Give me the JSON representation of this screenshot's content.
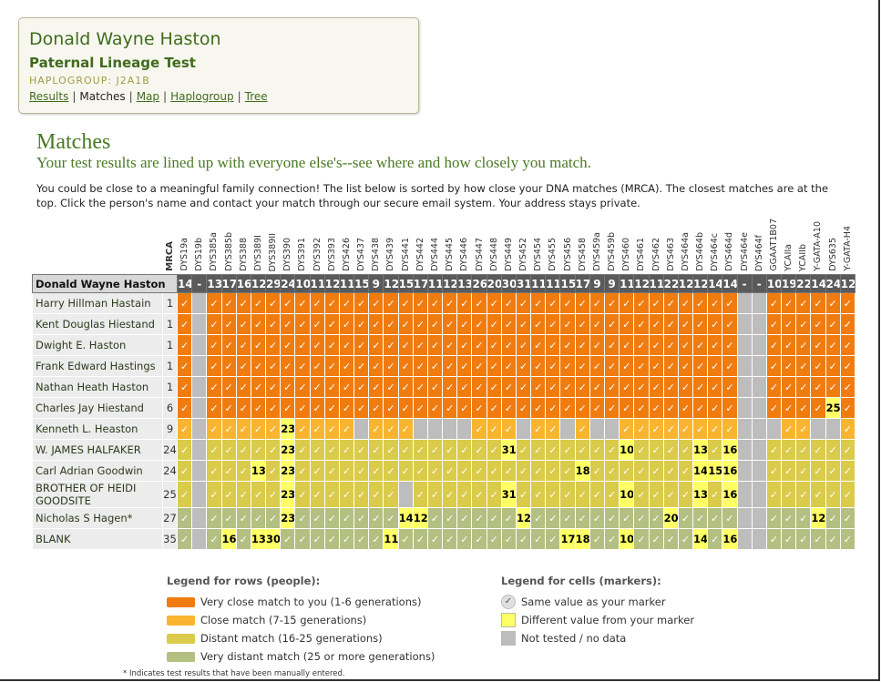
{
  "profile": {
    "name": "Donald Wayne Haston",
    "test": "Paternal Lineage Test",
    "haplogroup": "HAPLOGROUP: J2A1B",
    "nav": [
      "Results",
      "Matches",
      "Map",
      "Haplogroup",
      "Tree"
    ],
    "nav_current": 1,
    "nav_separator": "|"
  },
  "heading": "Matches",
  "subheading": "Your test results are lined up with everyone else's--see where and how closely you match.",
  "intro": "You could be close to a meaningful family connection! The list below is sorted by how close your DNA matches (MRCA). The closest matches are at the top. Click the person's name and contact your match through our secure email system. Your address stays private.",
  "table": {
    "mrca_label": "MRCA",
    "markers": [
      "DYS19a",
      "DYS19b",
      "DYS385a",
      "DYS385b",
      "DYS388",
      "DYS389I",
      "DYS389II",
      "DYS390",
      "DYS391",
      "DYS392",
      "DYS393",
      "DYS426",
      "DYS437",
      "DYS438",
      "DYS439",
      "DYS441",
      "DYS442",
      "DYS444",
      "DYS445",
      "DYS446",
      "DYS447",
      "DYS448",
      "DYS449",
      "DYS452",
      "DYS454",
      "DYS455",
      "DYS456",
      "DYS458",
      "DYS459a",
      "DYS459b",
      "DYS460",
      "DYS461",
      "DYS462",
      "DYS463",
      "DYS464a",
      "DYS464b",
      "DYS464c",
      "DYS464d",
      "DYS464e",
      "DYS464f",
      "GGAAT1B07",
      "YCAIIa",
      "YCAIIb",
      "Y-GATA-A10",
      "DYS635",
      "Y-GATA-H4"
    ],
    "reference": {
      "name": "Donald Wayne Haston",
      "values": [
        14,
        "-",
        13,
        17,
        16,
        12,
        29,
        24,
        10,
        11,
        12,
        11,
        15,
        9,
        12,
        15,
        17,
        11,
        12,
        13,
        26,
        20,
        30,
        31,
        11,
        11,
        15,
        17,
        9,
        9,
        11,
        12,
        11,
        22,
        12,
        12,
        14,
        14,
        "-",
        "-",
        10,
        19,
        22,
        14,
        24,
        12
      ]
    },
    "rows": [
      {
        "name": "Harry Hillman Hastain",
        "mrca": 1,
        "color": "#f07c10",
        "cells": [
          "✓",
          null,
          "✓",
          "✓",
          "✓",
          "✓",
          "✓",
          "✓",
          "✓",
          "✓",
          "✓",
          "✓",
          "✓",
          "✓",
          "✓",
          "✓",
          "✓",
          "✓",
          "✓",
          "✓",
          "✓",
          "✓",
          "✓",
          "✓",
          "✓",
          "✓",
          "✓",
          "✓",
          "✓",
          "✓",
          "✓",
          "✓",
          "✓",
          "✓",
          "✓",
          "✓",
          "✓",
          "✓",
          null,
          null,
          "✓",
          "✓",
          "✓",
          "✓",
          "✓",
          "✓"
        ]
      },
      {
        "name": "Kent Douglas Hiestand",
        "mrca": 1,
        "color": "#f07c10",
        "cells": [
          "✓",
          null,
          "✓",
          "✓",
          "✓",
          "✓",
          "✓",
          "✓",
          "✓",
          "✓",
          "✓",
          "✓",
          "✓",
          "✓",
          "✓",
          "✓",
          "✓",
          "✓",
          "✓",
          "✓",
          "✓",
          "✓",
          "✓",
          "✓",
          "✓",
          "✓",
          "✓",
          "✓",
          "✓",
          "✓",
          "✓",
          "✓",
          "✓",
          "✓",
          "✓",
          "✓",
          "✓",
          "✓",
          null,
          null,
          "✓",
          "✓",
          "✓",
          "✓",
          "✓",
          "✓"
        ]
      },
      {
        "name": "Dwight E. Haston",
        "mrca": 1,
        "color": "#f07c10",
        "cells": [
          "✓",
          null,
          "✓",
          "✓",
          "✓",
          "✓",
          "✓",
          "✓",
          "✓",
          "✓",
          "✓",
          "✓",
          "✓",
          "✓",
          "✓",
          "✓",
          "✓",
          "✓",
          "✓",
          "✓",
          "✓",
          "✓",
          "✓",
          "✓",
          "✓",
          "✓",
          "✓",
          "✓",
          "✓",
          "✓",
          "✓",
          "✓",
          "✓",
          "✓",
          "✓",
          "✓",
          "✓",
          "✓",
          null,
          null,
          "✓",
          "✓",
          "✓",
          "✓",
          "✓",
          "✓"
        ]
      },
      {
        "name": "Frank Edward Hastings",
        "mrca": 1,
        "color": "#f07c10",
        "cells": [
          "✓",
          null,
          "✓",
          "✓",
          "✓",
          "✓",
          "✓",
          "✓",
          "✓",
          "✓",
          "✓",
          "✓",
          "✓",
          "✓",
          "✓",
          "✓",
          "✓",
          "✓",
          "✓",
          "✓",
          "✓",
          "✓",
          "✓",
          "✓",
          "✓",
          "✓",
          "✓",
          "✓",
          "✓",
          "✓",
          "✓",
          "✓",
          "✓",
          "✓",
          "✓",
          "✓",
          "✓",
          "✓",
          null,
          null,
          "✓",
          "✓",
          "✓",
          "✓",
          "✓",
          "✓"
        ]
      },
      {
        "name": "Nathan Heath Haston",
        "mrca": 1,
        "color": "#f07c10",
        "cells": [
          "✓",
          null,
          "✓",
          "✓",
          "✓",
          "✓",
          "✓",
          "✓",
          "✓",
          "✓",
          "✓",
          "✓",
          "✓",
          "✓",
          "✓",
          "✓",
          "✓",
          "✓",
          "✓",
          "✓",
          "✓",
          "✓",
          "✓",
          "✓",
          "✓",
          "✓",
          "✓",
          "✓",
          "✓",
          "✓",
          "✓",
          "✓",
          "✓",
          "✓",
          "✓",
          "✓",
          "✓",
          "✓",
          null,
          null,
          "✓",
          "✓",
          "✓",
          "✓",
          "✓",
          "✓"
        ]
      },
      {
        "name": "Charles Jay Hiestand",
        "mrca": 6,
        "color": "#f07c10",
        "cells": [
          "✓",
          null,
          "✓",
          "✓",
          "✓",
          "✓",
          "✓",
          "✓",
          "✓",
          "✓",
          "✓",
          "✓",
          "✓",
          "✓",
          "✓",
          "✓",
          "✓",
          "✓",
          "✓",
          "✓",
          "✓",
          "✓",
          "✓",
          "✓",
          "✓",
          "✓",
          "✓",
          "✓",
          "✓",
          "✓",
          "✓",
          "✓",
          "✓",
          "✓",
          "✓",
          "✓",
          "✓",
          "✓",
          null,
          null,
          "✓",
          "✓",
          "✓",
          "✓",
          25,
          "✓"
        ]
      },
      {
        "name": "Kenneth L. Heaston",
        "mrca": 9,
        "color": "#f9b52f",
        "cells": [
          "✓",
          null,
          "✓",
          "✓",
          "✓",
          "✓",
          "✓",
          23,
          "✓",
          "✓",
          "✓",
          "✓",
          null,
          "✓",
          "✓",
          "✓",
          null,
          null,
          null,
          null,
          "✓",
          "✓",
          "✓",
          null,
          "✓",
          "✓",
          null,
          "✓",
          null,
          null,
          "✓",
          "✓",
          "✓",
          "✓",
          "✓",
          "✓",
          "✓",
          "✓",
          null,
          null,
          null,
          "✓",
          "✓",
          null,
          null,
          "✓"
        ]
      },
      {
        "name": "W. JAMES HALFAKER",
        "mrca": 24,
        "color": "#dacb4b",
        "cells": [
          "✓",
          null,
          "✓",
          "✓",
          "✓",
          "✓",
          "✓",
          23,
          "✓",
          "✓",
          "✓",
          "✓",
          "✓",
          "✓",
          "✓",
          "✓",
          "✓",
          "✓",
          "✓",
          "✓",
          "✓",
          "✓",
          31,
          "✓",
          "✓",
          "✓",
          "✓",
          "✓",
          "✓",
          "✓",
          10,
          "✓",
          "✓",
          "✓",
          "✓",
          13,
          "✓",
          16,
          null,
          null,
          "✓",
          "✓",
          "✓",
          "✓",
          "✓",
          "✓"
        ]
      },
      {
        "name": "Carl Adrian Goodwin",
        "mrca": 24,
        "color": "#dacb4b",
        "cells": [
          "✓",
          null,
          "✓",
          "✓",
          "✓",
          13,
          "✓",
          23,
          "✓",
          "✓",
          "✓",
          "✓",
          "✓",
          "✓",
          "✓",
          "✓",
          "✓",
          "✓",
          "✓",
          "✓",
          "✓",
          "✓",
          "✓",
          "✓",
          "✓",
          "✓",
          "✓",
          18,
          "✓",
          "✓",
          "✓",
          "✓",
          "✓",
          "✓",
          "✓",
          14,
          15,
          16,
          null,
          null,
          "✓",
          "✓",
          "✓",
          "✓",
          "✓",
          "✓"
        ]
      },
      {
        "name": "BROTHER OF HEIDI GOODSITE",
        "mrca": 25,
        "color": "#dacb4b",
        "cells": [
          "✓",
          null,
          "✓",
          "✓",
          "✓",
          "✓",
          "✓",
          23,
          "✓",
          "✓",
          "✓",
          "✓",
          "✓",
          "✓",
          "✓",
          null,
          "✓",
          "✓",
          "✓",
          "✓",
          "✓",
          "✓",
          31,
          "✓",
          "✓",
          "✓",
          "✓",
          "✓",
          "✓",
          "✓",
          10,
          "✓",
          "✓",
          "✓",
          "✓",
          13,
          "✓",
          16,
          null,
          null,
          "✓",
          "✓",
          "✓",
          "✓",
          "✓",
          "✓"
        ]
      },
      {
        "name": "Nicholas S Hagen*",
        "mrca": 27,
        "color": "#b4bf82",
        "cells": [
          "✓",
          null,
          "✓",
          "✓",
          "✓",
          "✓",
          "✓",
          23,
          "✓",
          "✓",
          "✓",
          "✓",
          "✓",
          "✓",
          "✓",
          14,
          12,
          "✓",
          "✓",
          "✓",
          "✓",
          "✓",
          "✓",
          12,
          "✓",
          "✓",
          "✓",
          "✓",
          "✓",
          "✓",
          "✓",
          "✓",
          "✓",
          20,
          "✓",
          "✓",
          "✓",
          "✓",
          null,
          null,
          "✓",
          "✓",
          "✓",
          12,
          "✓",
          "✓"
        ]
      },
      {
        "name": "BLANK",
        "mrca": 35,
        "color": "#b4bf82",
        "cells": [
          "✓",
          null,
          "✓",
          16,
          "✓",
          13,
          30,
          "✓",
          "✓",
          "✓",
          "✓",
          "✓",
          "✓",
          "✓",
          11,
          "✓",
          "✓",
          "✓",
          "✓",
          "✓",
          "✓",
          "✓",
          "✓",
          "✓",
          "✓",
          "✓",
          17,
          18,
          "✓",
          "✓",
          10,
          "✓",
          "✓",
          "✓",
          "✓",
          14,
          "✓",
          16,
          null,
          null,
          "✓",
          "✓",
          "✓",
          "✓",
          "✓",
          "✓"
        ]
      }
    ],
    "different_color": "#ffff66",
    "no_data_color": "#bdbdbd"
  },
  "legend_rows": {
    "title": "Legend for rows (people):",
    "items": [
      {
        "label": "Very close match to you (1-6 generations)",
        "color": "#f07c10"
      },
      {
        "label": "Close match (7-15 generations)",
        "color": "#f9b52f"
      },
      {
        "label": "Distant match (16-25 generations)",
        "color": "#dacb4b"
      },
      {
        "label": "Very distant match (25 or more generations)",
        "color": "#b4bf82"
      }
    ]
  },
  "legend_cells": {
    "title": "Legend for cells (markers):",
    "items": [
      {
        "symbol": "✓",
        "label": "Same value as your marker",
        "color": "#e0e0e0"
      },
      {
        "label": "Different value from your marker",
        "color": "#ffff66"
      },
      {
        "label": "Not tested / no data",
        "color": "#bdbdbd"
      }
    ]
  },
  "footnote": "* Indicates test results that have been manually entered."
}
